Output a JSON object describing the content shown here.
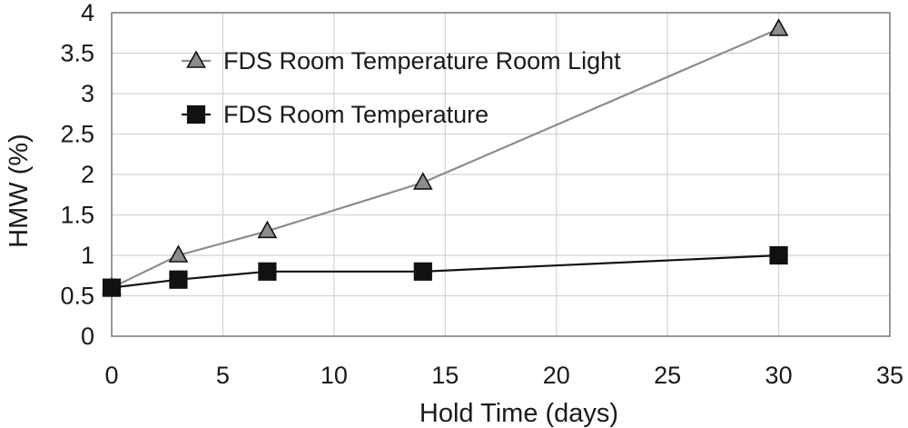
{
  "chart_data": {
    "type": "line",
    "title": "",
    "xlabel": "Hold Time (days)",
    "ylabel": "HMW (%)",
    "xlim": [
      0,
      35
    ],
    "ylim": [
      0,
      4
    ],
    "xticks": [
      0,
      5,
      10,
      15,
      20,
      25,
      30,
      35
    ],
    "yticks": [
      0,
      0.5,
      1,
      1.5,
      2,
      2.5,
      3,
      3.5,
      4
    ],
    "grid": true,
    "legend_position": "top-left",
    "series": [
      {
        "name": "FDS Room Temperature Room Light",
        "marker": "triangle",
        "line_color": "#8c8c8c",
        "marker_color": "#8c8c8c",
        "x": [
          0,
          3,
          7,
          14,
          30
        ],
        "y": [
          0.6,
          1.0,
          1.3,
          1.9,
          3.8
        ]
      },
      {
        "name": "FDS Room Temperature",
        "marker": "square",
        "line_color": "#111111",
        "marker_color": "#111111",
        "x": [
          0,
          3,
          7,
          14,
          30
        ],
        "y": [
          0.6,
          0.7,
          0.8,
          0.8,
          1.0
        ]
      }
    ]
  }
}
